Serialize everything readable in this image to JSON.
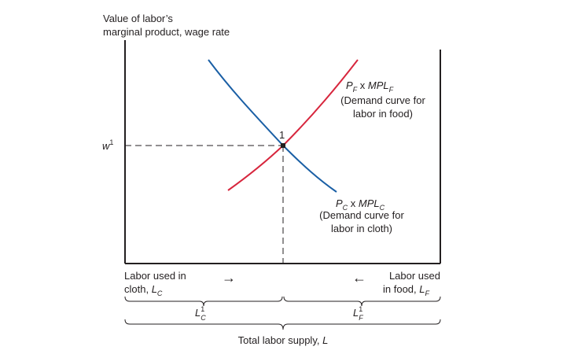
{
  "y_axis_label": {
    "line1": "Value of labor’s",
    "line2": "marginal product, wage rate"
  },
  "wage": {
    "symbol": "w",
    "superscript": "1"
  },
  "equilibrium": {
    "label": "1"
  },
  "food_curve": {
    "label": {
      "p": "P",
      "p_sub": "F",
      "times": " x ",
      "mpl": "MPL",
      "mpl_sub": "F"
    },
    "desc_line1": "(Demand curve for",
    "desc_line2": "labor in food)",
    "color": "#d7263d"
  },
  "cloth_curve": {
    "label": {
      "p": "P",
      "p_sub": "C",
      "times": " x ",
      "mpl": "MPL",
      "mpl_sub": "C"
    },
    "desc_line1": "(Demand curve for",
    "desc_line2": "labor in cloth)",
    "color": "#1a5fa5"
  },
  "labor_cloth": {
    "line1": "Labor used in",
    "line2": "cloth, ",
    "symbol": "L",
    "symbol_sub": "C",
    "arrow": "→"
  },
  "labor_food": {
    "line1": "Labor used",
    "line2": "in food, ",
    "symbol": "L",
    "symbol_sub": "F",
    "arrow": "←"
  },
  "lc1": {
    "symbol": "L",
    "sup": "1",
    "sub": "C"
  },
  "lf1": {
    "symbol": "L",
    "sup": "1",
    "sub": "F"
  },
  "total": {
    "text": "Total labor supply, ",
    "symbol": "L"
  }
}
